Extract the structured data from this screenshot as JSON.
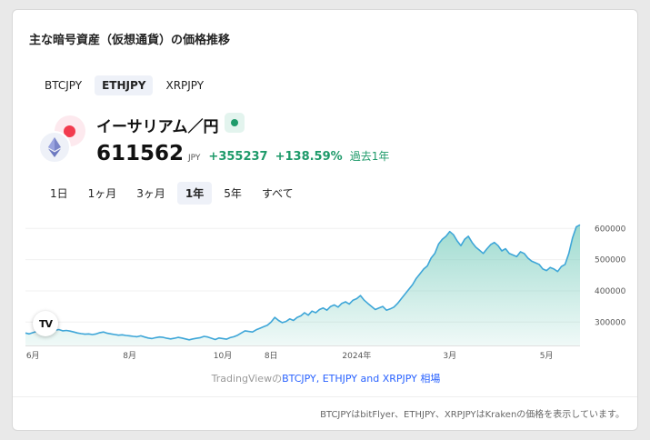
{
  "widget": {
    "title": "主な暗号資産（仮想通貨）の価格推移",
    "pair_tabs": [
      "BTCJPY",
      "ETHJPY",
      "XRPJPY"
    ],
    "active_pair": 1,
    "symbol_name": "イーサリアム／円",
    "price": "611562",
    "unit": "JPY",
    "change": "+355237",
    "change_pct": "+138.59%",
    "period": "過去1年",
    "range_tabs": [
      "1日",
      "1ヶ月",
      "3ヶ月",
      "1年",
      "5年",
      "すべて"
    ],
    "active_range": 3,
    "tv_logo": "TV",
    "attribution_prefix": "TradingViewの",
    "attribution_link": "BTCJPY, ETHJPY and XRPJPY 相場",
    "footer_note": "BTCJPYはbitFlyer、ETHJPY、XRPJPYはKrakenの価格を表示しています。",
    "colors": {
      "up": "#1e9a6a",
      "line": "#3ea6d8",
      "link": "#2962ff",
      "btc_dot": "#f23b4e"
    },
    "icons": [
      "btc-red-dot-icon",
      "ethereum-icon",
      "status-dot-icon",
      "tradingview-logo-icon"
    ]
  },
  "chart_data": {
    "type": "area",
    "x_tick_labels": [
      "6月",
      "8月",
      "10月",
      "8日",
      "2024年",
      "3月",
      "5月"
    ],
    "x_tick_index": [
      2,
      28,
      53,
      66,
      89,
      114,
      140
    ],
    "y_tick_labels": [
      "600000",
      "500000",
      "400000",
      "300000"
    ],
    "y_tick_values": [
      600000,
      500000,
      400000,
      300000
    ],
    "ylim": [
      225000,
      630000
    ],
    "values": [
      265000,
      262000,
      266000,
      270000,
      268000,
      272000,
      275000,
      278000,
      274000,
      276000,
      272000,
      273000,
      271000,
      268000,
      265000,
      263000,
      261000,
      262000,
      260000,
      262000,
      266000,
      268000,
      264000,
      262000,
      260000,
      258000,
      259000,
      257000,
      256000,
      254000,
      253000,
      256000,
      252000,
      249000,
      247000,
      250000,
      252000,
      251000,
      248000,
      246000,
      248000,
      251000,
      249000,
      246000,
      243000,
      246000,
      248000,
      250000,
      254000,
      252000,
      248000,
      244000,
      249000,
      247000,
      245000,
      250000,
      253000,
      258000,
      265000,
      272000,
      270000,
      268000,
      275000,
      280000,
      285000,
      290000,
      300000,
      315000,
      305000,
      298000,
      302000,
      310000,
      305000,
      315000,
      320000,
      330000,
      322000,
      335000,
      330000,
      340000,
      345000,
      338000,
      350000,
      355000,
      348000,
      360000,
      365000,
      358000,
      370000,
      375000,
      385000,
      370000,
      360000,
      350000,
      340000,
      345000,
      350000,
      338000,
      342000,
      348000,
      360000,
      375000,
      390000,
      405000,
      420000,
      440000,
      455000,
      470000,
      480000,
      505000,
      520000,
      550000,
      565000,
      575000,
      590000,
      580000,
      560000,
      545000,
      565000,
      575000,
      555000,
      540000,
      530000,
      520000,
      535000,
      548000,
      555000,
      545000,
      528000,
      535000,
      520000,
      515000,
      510000,
      525000,
      520000,
      505000,
      495000,
      490000,
      485000,
      470000,
      465000,
      475000,
      470000,
      462000,
      478000,
      485000,
      520000,
      570000,
      605000,
      611562
    ]
  }
}
